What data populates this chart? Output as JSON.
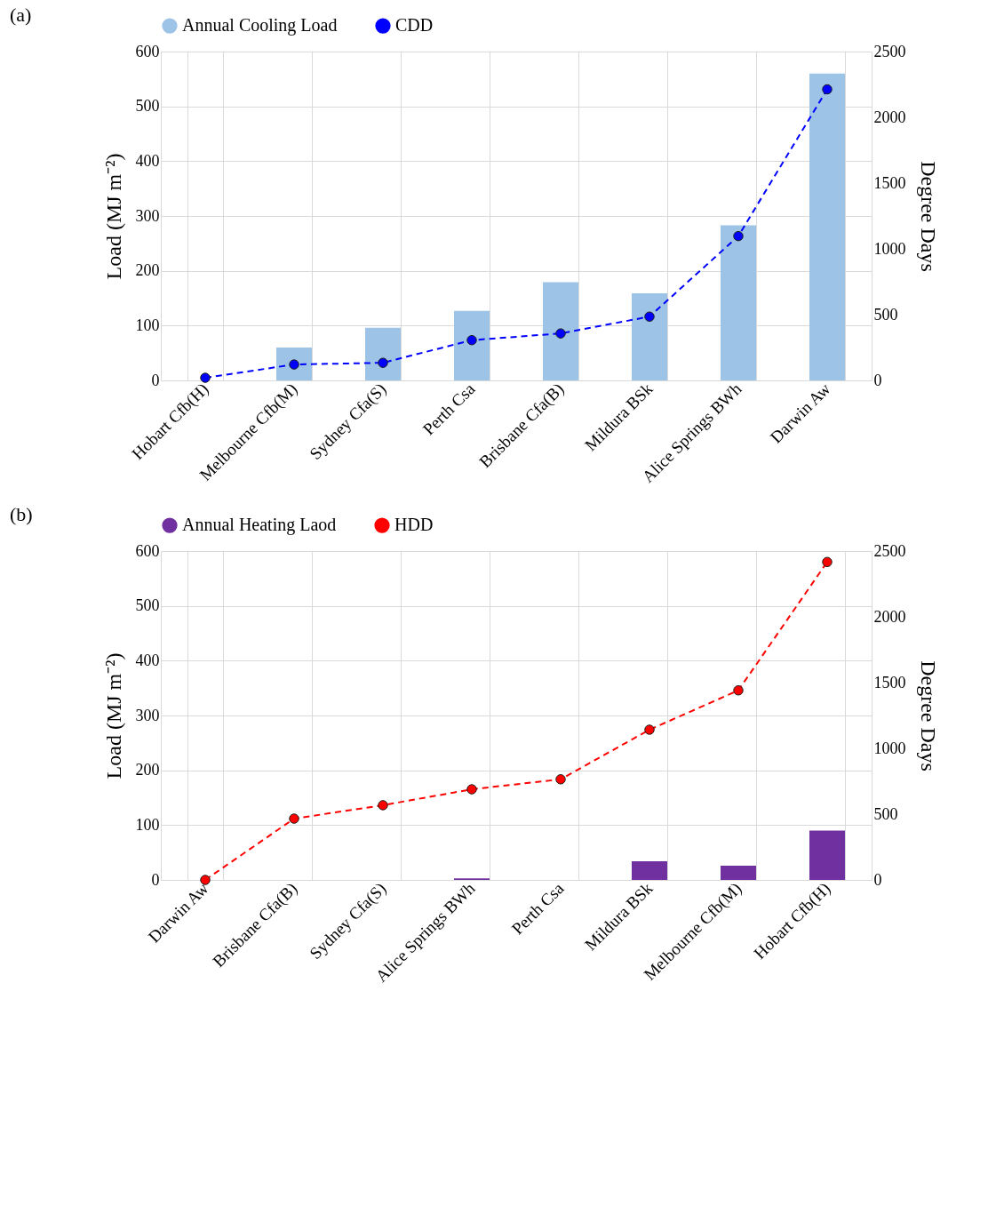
{
  "chart_data": [
    {
      "type": "bar",
      "annotations": [
        "(a)"
      ],
      "categories": [
        "Hobart Cfb(H)",
        "Melbourne Cfb(M)",
        "Sydney Cfa(S)",
        "Perth Csa",
        "Brisbane Cfa(B)",
        "Mildura BSk",
        "Alice Springs BWh",
        "Darwin Aw"
      ],
      "series": [
        {
          "name": "Annual Cooling Load",
          "color": "#9dc3e6",
          "values": [
            0,
            60,
            96,
            127,
            179,
            159,
            283,
            560
          ]
        },
        {
          "name": "CDD",
          "type": "line",
          "axis": "y2",
          "color": "#0000ff",
          "values": [
            20,
            121,
            134,
            306,
            357,
            485,
            1097,
            2213
          ]
        }
      ],
      "ylabel": "Load (MJ m⁻²)",
      "y2label": "Degree Days",
      "ylim": [
        0,
        600
      ],
      "yticks": [
        0,
        100,
        200,
        300,
        400,
        500,
        600
      ],
      "y2lim": [
        0,
        2500
      ],
      "y2ticks": [
        0,
        500,
        1000,
        1500,
        2000,
        2500
      ],
      "grid": true,
      "legend": "top",
      "marker": "circle",
      "line_style": "dashed"
    },
    {
      "type": "bar",
      "annotations": [
        "(b)"
      ],
      "categories": [
        "Darwin Aw",
        "Brisbane Cfa(B)",
        "Sydney Cfa(S)",
        "Alice Springs BWh",
        "Perth Csa",
        "Mildura BSk",
        "Melbourne Cfb(M)",
        "Hobart Cfb(H)"
      ],
      "series": [
        {
          "name": "Annual Heating Laod",
          "color": "#7030a0",
          "values": [
            0,
            0,
            0,
            3,
            0,
            34,
            26,
            90
          ]
        },
        {
          "name": "HDD",
          "type": "line",
          "axis": "y2",
          "color": "#ff0000",
          "values": [
            0,
            466,
            568,
            689,
            765,
            1142,
            1441,
            2417
          ]
        }
      ],
      "ylabel": "Load (MJ m⁻²)",
      "y2label": "Degree Days",
      "ylim": [
        0,
        600
      ],
      "yticks": [
        0,
        100,
        200,
        300,
        400,
        500,
        600
      ],
      "y2lim": [
        0,
        2500
      ],
      "y2ticks": [
        0,
        500,
        1000,
        1500,
        2000,
        2500
      ],
      "grid": true,
      "legend": "top",
      "marker": "circle",
      "line_style": "dashed"
    }
  ]
}
